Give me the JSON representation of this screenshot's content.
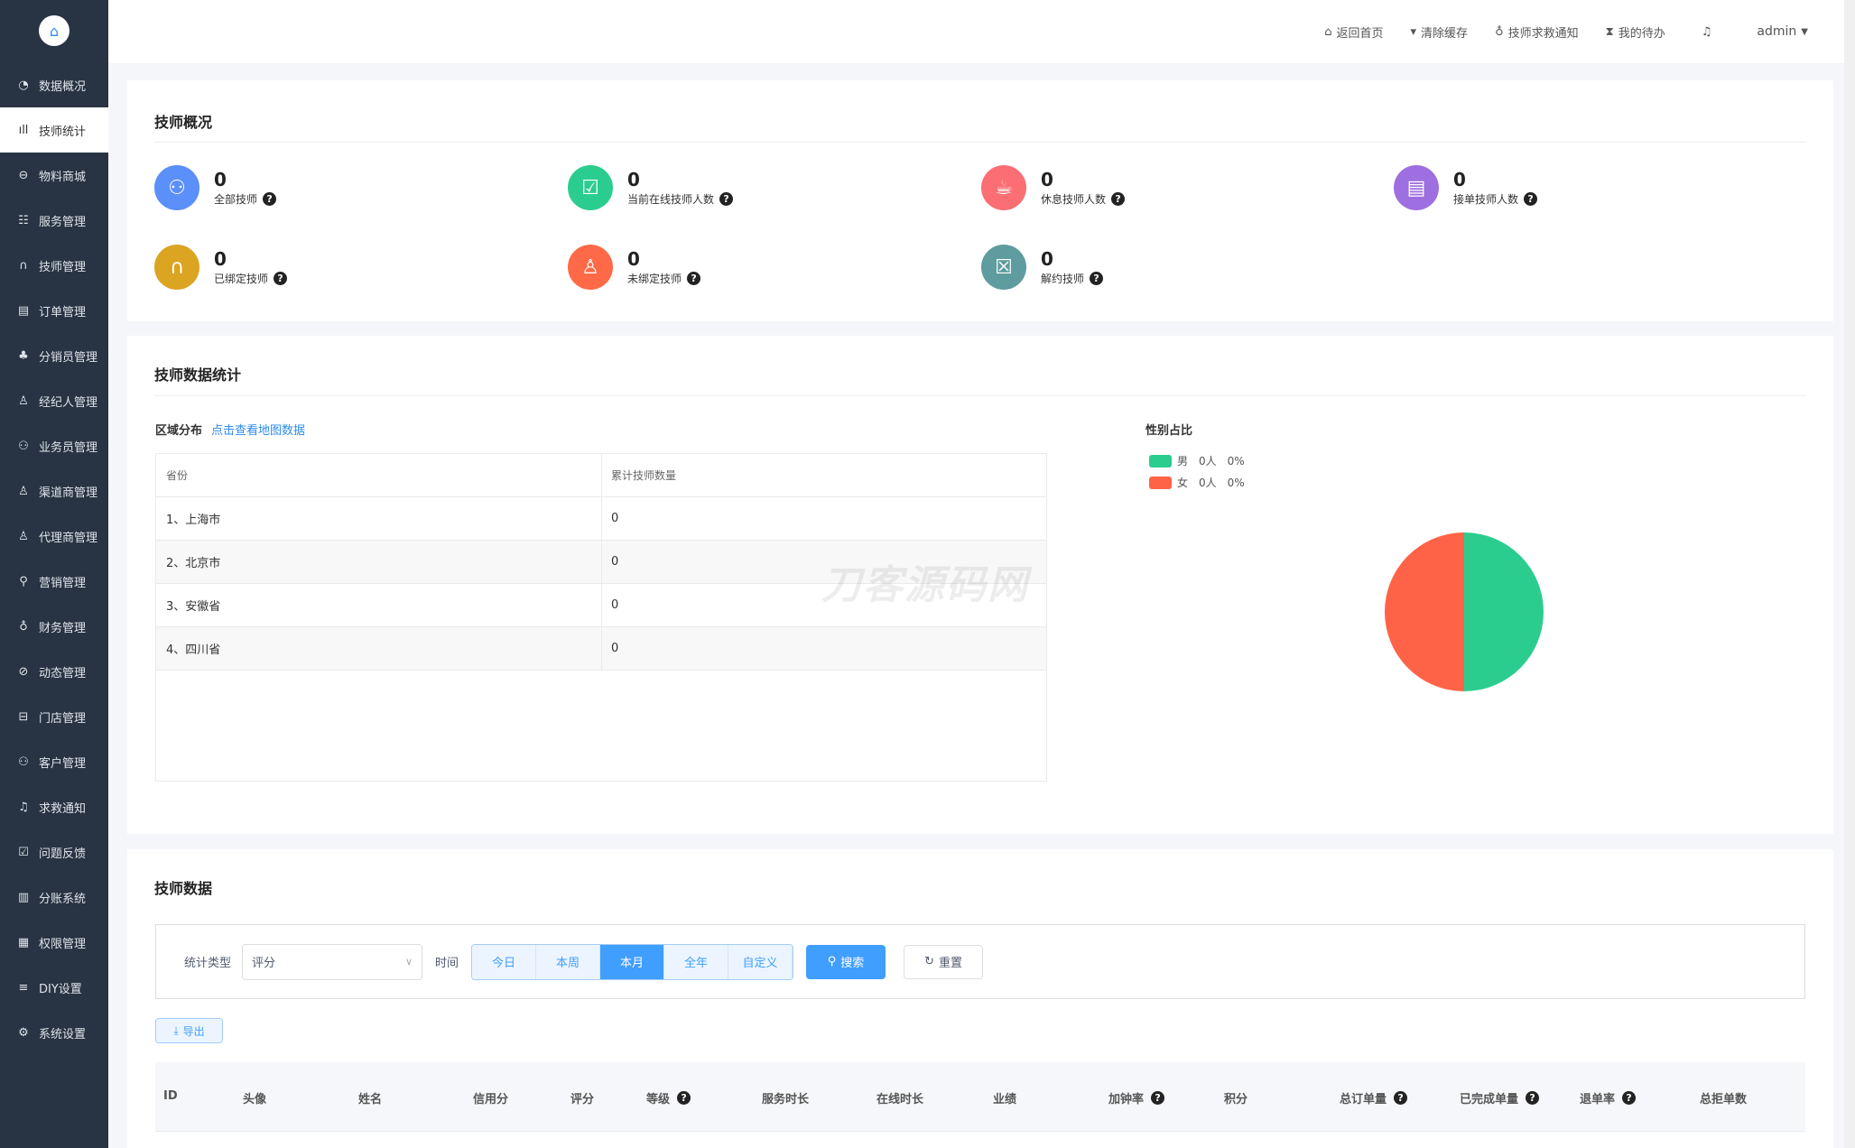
{
  "sidebar": {
    "logo_icon": "home-icon",
    "items": [
      {
        "label": "数据概况",
        "icon": "pie-chart-icon"
      },
      {
        "label": "技师统计",
        "icon": "bar-chart-icon",
        "active": true
      },
      {
        "label": "物料商城",
        "icon": "shopping-bag-icon"
      },
      {
        "label": "服务管理",
        "icon": "service-icon"
      },
      {
        "label": "技师管理",
        "icon": "technician-icon"
      },
      {
        "label": "订单管理",
        "icon": "clipboard-icon"
      },
      {
        "label": "分销员管理",
        "icon": "org-icon"
      },
      {
        "label": "经纪人管理",
        "icon": "agent-icon"
      },
      {
        "label": "业务员管理",
        "icon": "users-icon"
      },
      {
        "label": "渠道商管理",
        "icon": "user-icon"
      },
      {
        "label": "代理商管理",
        "icon": "proxy-icon"
      },
      {
        "label": "营销管理",
        "icon": "marketing-icon"
      },
      {
        "label": "财务管理",
        "icon": "money-bag-icon"
      },
      {
        "label": "动态管理",
        "icon": "compass-icon"
      },
      {
        "label": "门店管理",
        "icon": "store-icon"
      },
      {
        "label": "客户管理",
        "icon": "customers-icon"
      },
      {
        "label": "求救通知",
        "icon": "bell-icon"
      },
      {
        "label": "问题反馈",
        "icon": "feedback-icon"
      },
      {
        "label": "分账系统",
        "icon": "ledger-icon"
      },
      {
        "label": "权限管理",
        "icon": "permission-icon"
      },
      {
        "label": "DIY设置",
        "icon": "diy-icon"
      },
      {
        "label": "系统设置",
        "icon": "gear-icon"
      }
    ]
  },
  "topbar": {
    "items": [
      {
        "label": "返回首页",
        "icon": "home-icon"
      },
      {
        "label": "清除缓存",
        "icon": "brush-icon"
      },
      {
        "label": "技师求救通知",
        "icon": "alarm-icon"
      },
      {
        "label": "我的待办",
        "icon": "hourglass-icon"
      }
    ],
    "bell_icon": "bell-icon",
    "user": "admin"
  },
  "overview": {
    "title": "技师概况",
    "stats": [
      {
        "value": "0",
        "label": "全部技师",
        "color": "#5b8ff9",
        "icon": "users-icon"
      },
      {
        "value": "0",
        "label": "当前在线技师人数",
        "color": "#2bcd8f",
        "icon": "monitor-check-icon"
      },
      {
        "value": "0",
        "label": "休息技师人数",
        "color": "#fa6e74",
        "icon": "coffee-icon"
      },
      {
        "value": "0",
        "label": "接单技师人数",
        "color": "#9e6fe0",
        "icon": "order-accept-icon"
      },
      {
        "value": "0",
        "label": "已绑定技师",
        "color": "#dba421",
        "icon": "bound-icon"
      },
      {
        "value": "0",
        "label": "未绑定技师",
        "color": "#fe6a47",
        "icon": "person-icon"
      },
      {
        "value": "0",
        "label": "解约技师",
        "color": "#5e9c9f",
        "icon": "file-x-icon"
      }
    ]
  },
  "stats_section": {
    "title": "技师数据统计",
    "region_label": "区域分布",
    "map_link": "点击查看地图数据",
    "region_table": {
      "headers": [
        "省份",
        "累计技师数量"
      ],
      "rows": [
        [
          "1、上海市",
          "0"
        ],
        [
          "2、北京市",
          "0"
        ],
        [
          "3、安徽省",
          "0"
        ],
        [
          "4、四川省",
          "0"
        ]
      ]
    },
    "gender": {
      "title": "性别占比",
      "items": [
        {
          "label": "男",
          "count": "0人",
          "pct": "0%",
          "color": "#2bcd8f"
        },
        {
          "label": "女",
          "count": "0人",
          "pct": "0%",
          "color": "#fe6347"
        }
      ]
    },
    "watermark": "刀客源码网"
  },
  "tech_data": {
    "title": "技师数据",
    "filter": {
      "type_label": "统计类型",
      "type_value": "评分",
      "time_label": "时间",
      "time_options": [
        "今日",
        "本周",
        "本月",
        "全年",
        "自定义"
      ],
      "time_selected": "本月",
      "search": "搜索",
      "reset": "重置"
    },
    "export": "导出",
    "columns": [
      {
        "label": "ID"
      },
      {
        "label": "头像"
      },
      {
        "label": "姓名"
      },
      {
        "label": "信用分"
      },
      {
        "label": "评分"
      },
      {
        "label": "等级",
        "help": true
      },
      {
        "label": "服务时长"
      },
      {
        "label": "在线时长"
      },
      {
        "label": "业绩"
      },
      {
        "label": "加钟率",
        "help": true
      },
      {
        "label": "积分"
      },
      {
        "label": "总订单量",
        "help": true
      },
      {
        "label": "已完成单量",
        "help": true
      },
      {
        "label": "退单率",
        "help": true
      },
      {
        "label": "总拒单数"
      }
    ]
  }
}
